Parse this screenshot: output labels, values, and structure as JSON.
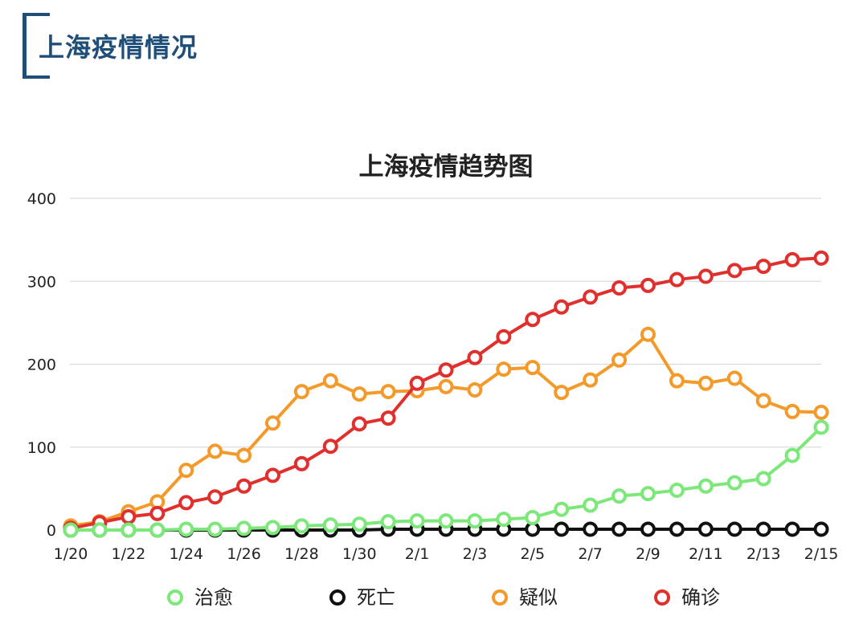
{
  "header": {
    "title": "上海疫情情况"
  },
  "chart_data": {
    "type": "line",
    "title": "上海疫情趋势图",
    "xlabel": "",
    "ylabel": "",
    "ylim": [
      0,
      400
    ],
    "yticks": [
      "0",
      "100",
      "200",
      "300",
      "400"
    ],
    "grid": true,
    "legend_position": "bottom",
    "x": [
      "1/20",
      "1/21",
      "1/22",
      "1/23",
      "1/24",
      "1/25",
      "1/26",
      "1/27",
      "1/28",
      "1/29",
      "1/30",
      "1/31",
      "2/1",
      "2/2",
      "2/3",
      "2/4",
      "2/5",
      "2/6",
      "2/7",
      "2/8",
      "2/9",
      "2/10",
      "2/11",
      "2/12",
      "2/13",
      "2/14",
      "2/15"
    ],
    "x_tick_labels": [
      "1/20",
      "1/22",
      "1/24",
      "1/26",
      "1/28",
      "1/30",
      "2/1",
      "2/3",
      "2/5",
      "2/7",
      "2/9",
      "2/11",
      "2/13",
      "2/15"
    ],
    "series": [
      {
        "name": "确诊",
        "color": "#e0302d",
        "values": [
          2,
          9,
          16,
          20,
          33,
          40,
          53,
          66,
          80,
          101,
          128,
          135,
          177,
          193,
          208,
          233,
          254,
          269,
          281,
          292,
          295,
          302,
          306,
          313,
          318,
          326,
          328
        ]
      },
      {
        "name": "疑似",
        "color": "#f39a2b",
        "values": [
          5,
          10,
          22,
          34,
          72,
          95,
          90,
          129,
          167,
          180,
          164,
          167,
          168,
          173,
          169,
          194,
          196,
          166,
          181,
          205,
          236,
          180,
          177,
          183,
          156,
          143,
          142
        ]
      },
      {
        "name": "治愈",
        "color": "#7de87a",
        "values": [
          0,
          0,
          0,
          0,
          1,
          1,
          2,
          3,
          5,
          6,
          7,
          10,
          11,
          11,
          11,
          13,
          15,
          25,
          30,
          41,
          44,
          48,
          53,
          57,
          62,
          90,
          124
        ]
      },
      {
        "name": "死亡",
        "color": "#111111",
        "values": [
          0,
          0,
          0,
          0,
          0,
          0,
          0,
          0,
          0,
          0,
          0,
          1,
          1,
          1,
          1,
          1,
          1,
          1,
          1,
          1,
          1,
          1,
          1,
          1,
          1,
          1,
          1
        ]
      }
    ],
    "legend": [
      {
        "name": "治愈",
        "color": "#7de87a"
      },
      {
        "name": "死亡",
        "color": "#111111"
      },
      {
        "name": "疑似",
        "color": "#f39a2b"
      },
      {
        "name": "确诊",
        "color": "#e0302d"
      }
    ]
  }
}
